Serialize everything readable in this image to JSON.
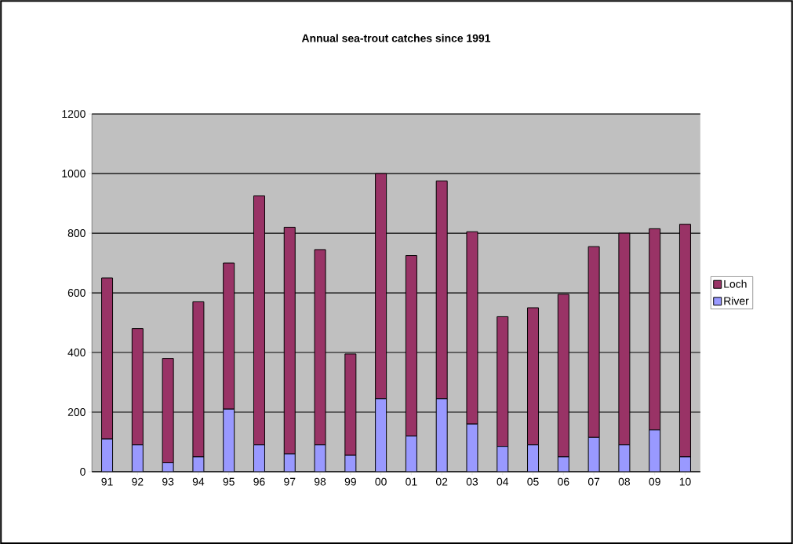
{
  "chart_data": {
    "type": "bar",
    "title": "Annual sea-trout catches since 1991",
    "categories": [
      "91",
      "92",
      "93",
      "94",
      "95",
      "96",
      "97",
      "98",
      "99",
      "00",
      "01",
      "02",
      "03",
      "04",
      "05",
      "06",
      "07",
      "08",
      "09",
      "10"
    ],
    "series": [
      {
        "name": "River",
        "color": "#9999ff",
        "values": [
          110,
          90,
          30,
          50,
          210,
          90,
          60,
          90,
          55,
          245,
          120,
          245,
          160,
          85,
          90,
          50,
          115,
          90,
          140,
          50
        ]
      },
      {
        "name": "Loch",
        "color": "#993366",
        "values": [
          540,
          390,
          350,
          520,
          490,
          835,
          760,
          655,
          340,
          755,
          605,
          730,
          645,
          435,
          460,
          545,
          640,
          710,
          675,
          780
        ]
      }
    ],
    "stacked": true,
    "ylim": [
      0,
      1200
    ],
    "yticks": [
      0,
      200,
      400,
      600,
      800,
      1000,
      1200
    ],
    "grid": "y",
    "legend": "right"
  }
}
